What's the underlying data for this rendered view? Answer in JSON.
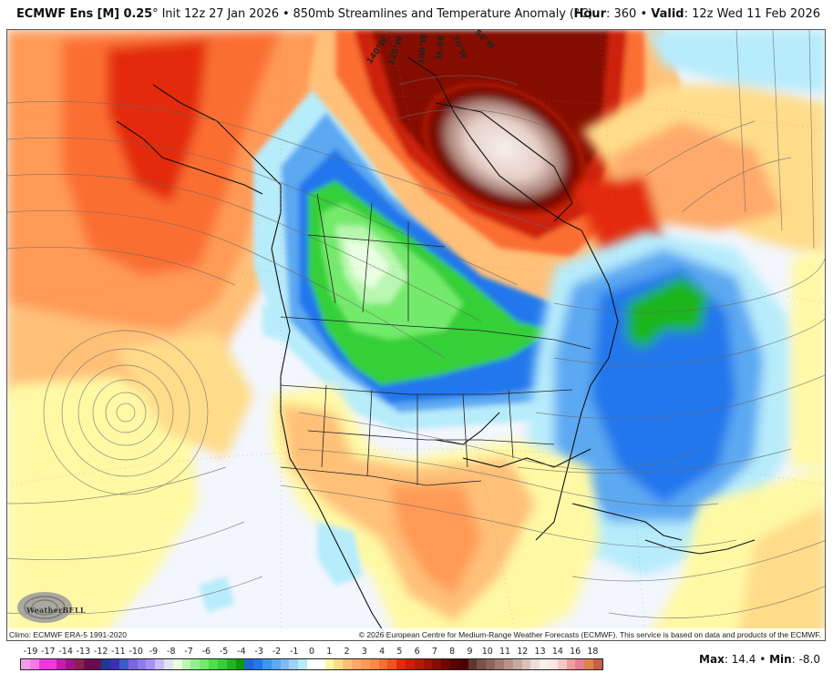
{
  "header": {
    "model_bold": "ECMWF Ens [M] 0.25",
    "degree": "°",
    "init_text": " Init 12z 27 Jan 2026 • 850mb Streamlines and Temperature Anomaly (°C)",
    "hour_label": "Hour",
    "hour_value": ": 360 • ",
    "valid_label": "Valid",
    "valid_value": ": 12z Wed 11 Feb 2026"
  },
  "map": {
    "region": "North America / North Atlantic / NE Pacific",
    "field": "850mb Temperature Anomaly (°C) with streamlines",
    "longitude_labels": [
      "140°W",
      "120°W",
      "100°W",
      "80°W",
      "70°W",
      "50°W"
    ],
    "features": [
      {
        "name": "warm-anomaly-baffin-greenland",
        "max_value": 14.4,
        "description": "Very strong warm anomaly over Baffin Island / Canadian Arctic Archipelago"
      },
      {
        "name": "warm-anomaly-alaska-ne-pacific",
        "description": "Warm anomaly over Alaska and NE Pacific"
      },
      {
        "name": "cold-anomaly-canadian-prairies",
        "description": "Cold anomaly (green, -5 to -7) over western Canada to Great Lakes"
      },
      {
        "name": "cold-anomaly-western-atlantic",
        "description": "Cold anomaly (blue/green) over western Atlantic, Newfoundland"
      },
      {
        "name": "warm-anomaly-southern-us",
        "description": "Moderate warm anomaly over Texas, southern Plains"
      },
      {
        "name": "anticyclone-ne-pacific",
        "description": "Closed circulation center in streamlines off West Coast"
      }
    ]
  },
  "credits": {
    "climo": "Climo: ECMWF ERA-5 1991-2020",
    "copyright": "© 2026 European Centre for Medium-Range Weather Forecasts (ECMWF). This service is based on data and products of the ECMWF.",
    "logo_text": "WeatherBELL"
  },
  "colorbar": {
    "labels": [
      "-19",
      "-17",
      "-14",
      "-13",
      "-12",
      "-11",
      "-10",
      "-9",
      "-8",
      "-7",
      "-6",
      "-5",
      "-4",
      "-3",
      "-2",
      "-1",
      "0",
      "1",
      "2",
      "3",
      "4",
      "5",
      "6",
      "7",
      "8",
      "9",
      "10",
      "11",
      "12",
      "13",
      "14",
      "16",
      "18"
    ],
    "colors": [
      "#f59ce8",
      "#f47ae6",
      "#f236de",
      "#f236de",
      "#c81bb0",
      "#a5128f",
      "#8a2050",
      "#6a0d4e",
      "#6a0d4e",
      "#1c3899",
      "#3d2fb5",
      "#3d5bc8",
      "#7a66e0",
      "#8c7cec",
      "#a791f8",
      "#c9bdf9",
      "#e2e2f2",
      "#e8ffe0",
      "#b9f7b0",
      "#95ef8e",
      "#73ea6c",
      "#4fe04a",
      "#36cf37",
      "#1fb51f",
      "#0c9a0c",
      "#1e66d4",
      "#2377ec",
      "#3d97f0",
      "#5ba9f2",
      "#7ebbf5",
      "#9dd0fa",
      "#b7ecfb",
      "#ffffff",
      "#ffffff",
      "#fff9a6",
      "#ffdc8a",
      "#ffc078",
      "#ffaa6a",
      "#ff9a57",
      "#ff8945",
      "#fb6e30",
      "#f65020",
      "#e32a0a",
      "#cc2008",
      "#b51a05",
      "#9c1204",
      "#850c02",
      "#6e0602",
      "#5a0202",
      "#4d0000",
      "#5d372f",
      "#7b5048",
      "#8e6359",
      "#a57c72",
      "#b8928a",
      "#c8a9a1",
      "#dcc1b8",
      "#efdcd6",
      "#f8efea",
      "#fbe6e6",
      "#f6c8c8",
      "#f09e9e",
      "#e47f95",
      "#e0844c",
      "#c85f48"
    ],
    "widths": [
      9,
      9,
      9,
      9,
      9,
      9,
      9,
      9,
      9,
      9,
      9,
      9,
      9,
      9,
      9,
      9,
      9,
      9,
      9,
      9,
      9,
      9,
      9,
      9,
      9,
      9,
      9,
      9,
      9,
      9,
      9,
      9,
      9,
      9,
      9,
      9,
      9,
      9,
      9,
      9,
      9,
      9,
      9,
      9,
      9,
      9,
      9,
      9,
      9,
      9,
      9,
      9,
      9,
      9,
      9,
      9,
      9,
      9,
      9,
      9,
      9,
      9,
      9,
      9,
      9
    ]
  },
  "stats": {
    "max_label": "Max",
    "max_value": ": 14.4 • ",
    "min_label": "Min",
    "min_value": ": -8.0"
  },
  "colors": {
    "warm_deep": "#e32a0a",
    "warm_mid": "#fb6e30",
    "warm_light": "#ffc078",
    "warm_pale": "#fff6a6",
    "neutral": "#f3f6fd",
    "cool_pale": "#b7ecfb",
    "cool_mid": "#3d97f0",
    "cool_deep": "#1e66d4",
    "green_pale": "#e8ffe0",
    "green_mid": "#4fe04a",
    "green_deep": "#1fb51f",
    "brown_core": "#8e6359",
    "pink_core": "#f8efea"
  }
}
